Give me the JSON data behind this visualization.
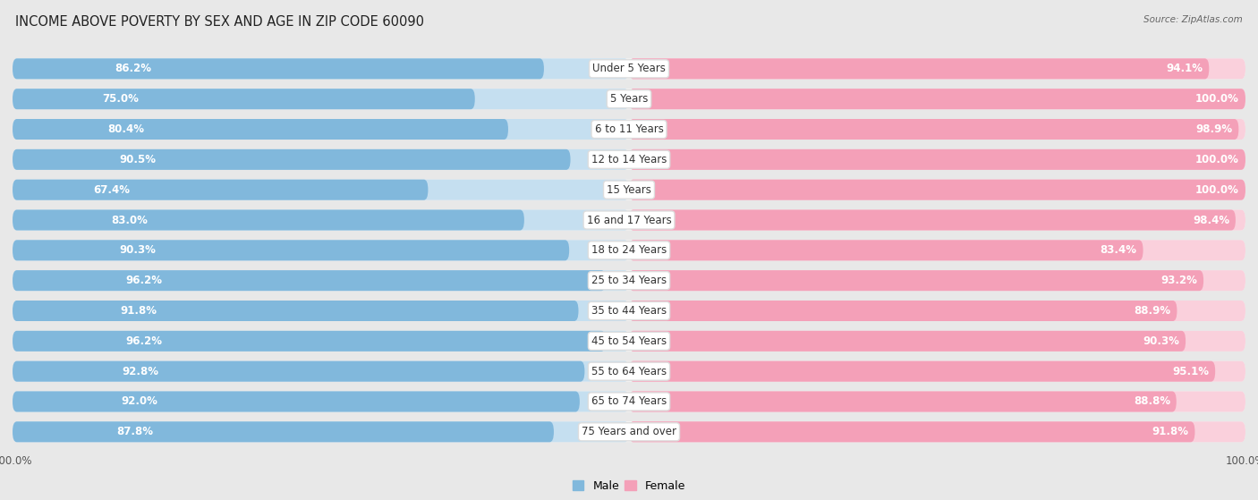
{
  "title": "INCOME ABOVE POVERTY BY SEX AND AGE IN ZIP CODE 60090",
  "source": "Source: ZipAtlas.com",
  "categories": [
    "Under 5 Years",
    "5 Years",
    "6 to 11 Years",
    "12 to 14 Years",
    "15 Years",
    "16 and 17 Years",
    "18 to 24 Years",
    "25 to 34 Years",
    "35 to 44 Years",
    "45 to 54 Years",
    "55 to 64 Years",
    "65 to 74 Years",
    "75 Years and over"
  ],
  "male_values": [
    86.2,
    75.0,
    80.4,
    90.5,
    67.4,
    83.0,
    90.3,
    96.2,
    91.8,
    96.2,
    92.8,
    92.0,
    87.8
  ],
  "female_values": [
    94.1,
    100.0,
    98.9,
    100.0,
    100.0,
    98.4,
    83.4,
    93.2,
    88.9,
    90.3,
    95.1,
    88.8,
    91.8
  ],
  "male_color": "#81b8dc",
  "female_color": "#f4a0b8",
  "male_light": "#c5dff0",
  "female_light": "#fad0dc",
  "background_color": "#e8e8e8",
  "row_bg": "#f5f5f5",
  "bar_height": 0.68,
  "title_fontsize": 10.5,
  "label_fontsize": 8.5,
  "tick_fontsize": 8.5,
  "category_fontsize": 8.5
}
